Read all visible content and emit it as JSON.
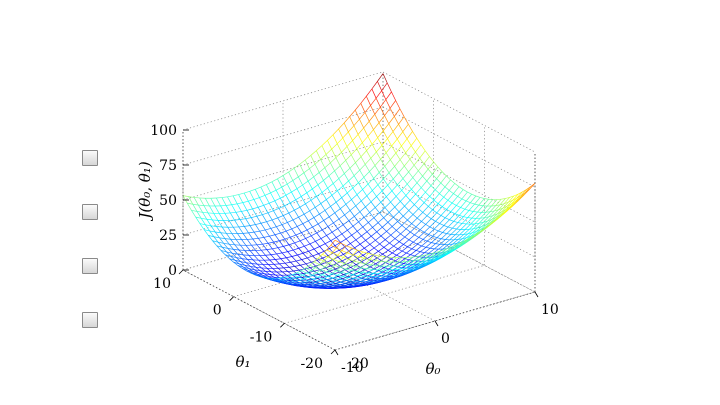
{
  "checkboxes": [
    {
      "checked": false
    },
    {
      "checked": false
    },
    {
      "checked": false
    },
    {
      "checked": false
    }
  ],
  "chart_data": {
    "type": "surface",
    "z_label": "J(θ₀, θ₁)",
    "x_label": "θ₀",
    "y_label": "θ₁",
    "z_ticks": [
      "0",
      "25",
      "50",
      "75",
      "100"
    ],
    "x_ticks": [
      "-10",
      "0",
      "10"
    ],
    "y_ticks": [
      "-20",
      "-10",
      "0",
      "10"
    ],
    "zlim": [
      0,
      100
    ],
    "xlim": [
      -10,
      10
    ],
    "ylim": [
      -20,
      10
    ],
    "grid": true,
    "colormap": "jet"
  }
}
